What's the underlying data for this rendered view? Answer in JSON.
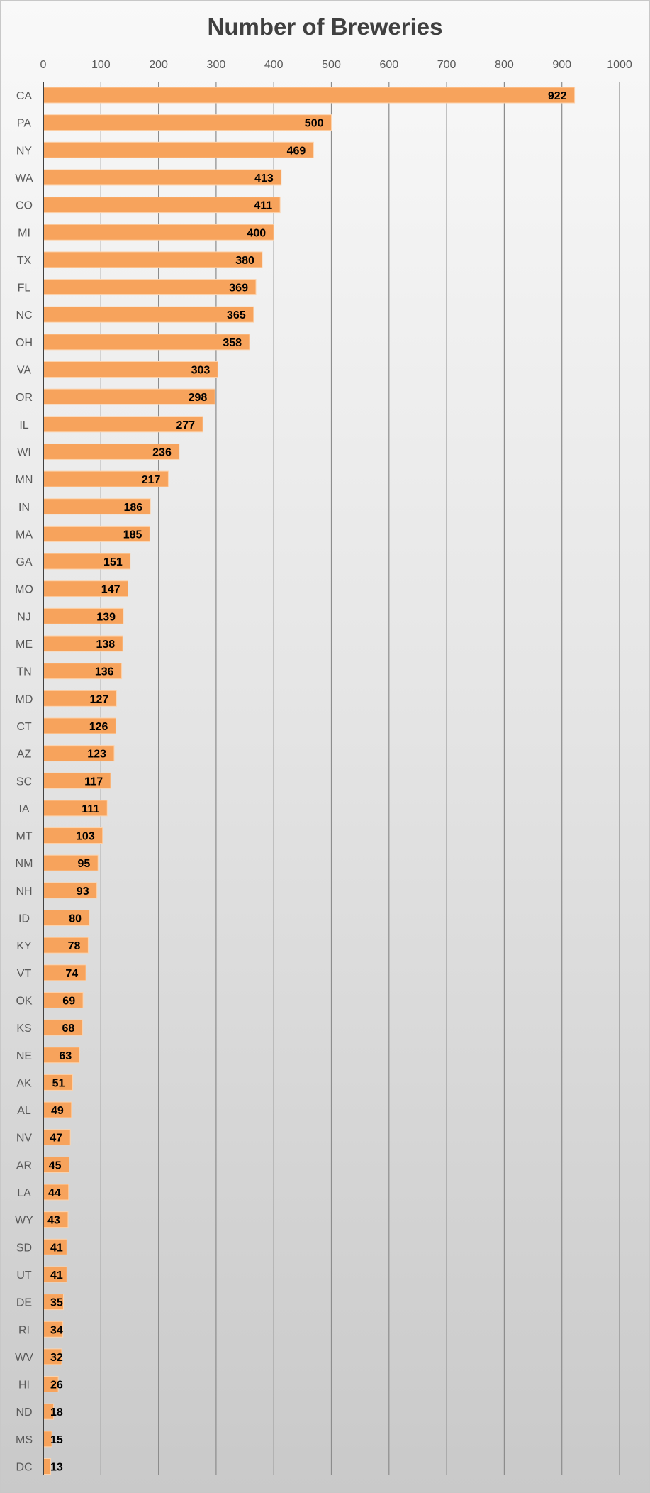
{
  "chart_data": {
    "type": "bar",
    "orientation": "horizontal",
    "title": "Number of Breweries",
    "xlabel": "",
    "ylabel": "",
    "xlim": [
      0,
      1000
    ],
    "ticks": [
      0,
      100,
      200,
      300,
      400,
      500,
      600,
      700,
      800,
      900,
      1000
    ],
    "tick_labels": [
      "0",
      "100",
      "200",
      "300",
      "400",
      "500",
      "600",
      "700",
      "800",
      "900",
      "1000"
    ],
    "axis_position": "top",
    "grid": true,
    "legend": "none",
    "bar_color": "#f7a35c",
    "bar_border_color": "#fcd3ad",
    "categories": [
      "CA",
      "PA",
      "NY",
      "WA",
      "CO",
      "MI",
      "TX",
      "FL",
      "NC",
      "OH",
      "VA",
      "OR",
      "IL",
      "WI",
      "MN",
      "IN",
      "MA",
      "GA",
      "MO",
      "NJ",
      "ME",
      "TN",
      "MD",
      "CT",
      "AZ",
      "SC",
      "IA",
      "MT",
      "NM",
      "NH",
      "ID",
      "KY",
      "VT",
      "OK",
      "KS",
      "NE",
      "AK",
      "AL",
      "NV",
      "AR",
      "LA",
      "WY",
      "SD",
      "UT",
      "DE",
      "RI",
      "WV",
      "HI",
      "ND",
      "MS",
      "DC"
    ],
    "values": [
      922,
      500,
      469,
      413,
      411,
      400,
      380,
      369,
      365,
      358,
      303,
      298,
      277,
      236,
      217,
      186,
      185,
      151,
      147,
      139,
      138,
      136,
      127,
      126,
      123,
      117,
      111,
      103,
      95,
      93,
      80,
      78,
      74,
      69,
      68,
      63,
      51,
      49,
      47,
      45,
      44,
      43,
      41,
      41,
      35,
      34,
      32,
      26,
      18,
      15,
      13
    ]
  }
}
